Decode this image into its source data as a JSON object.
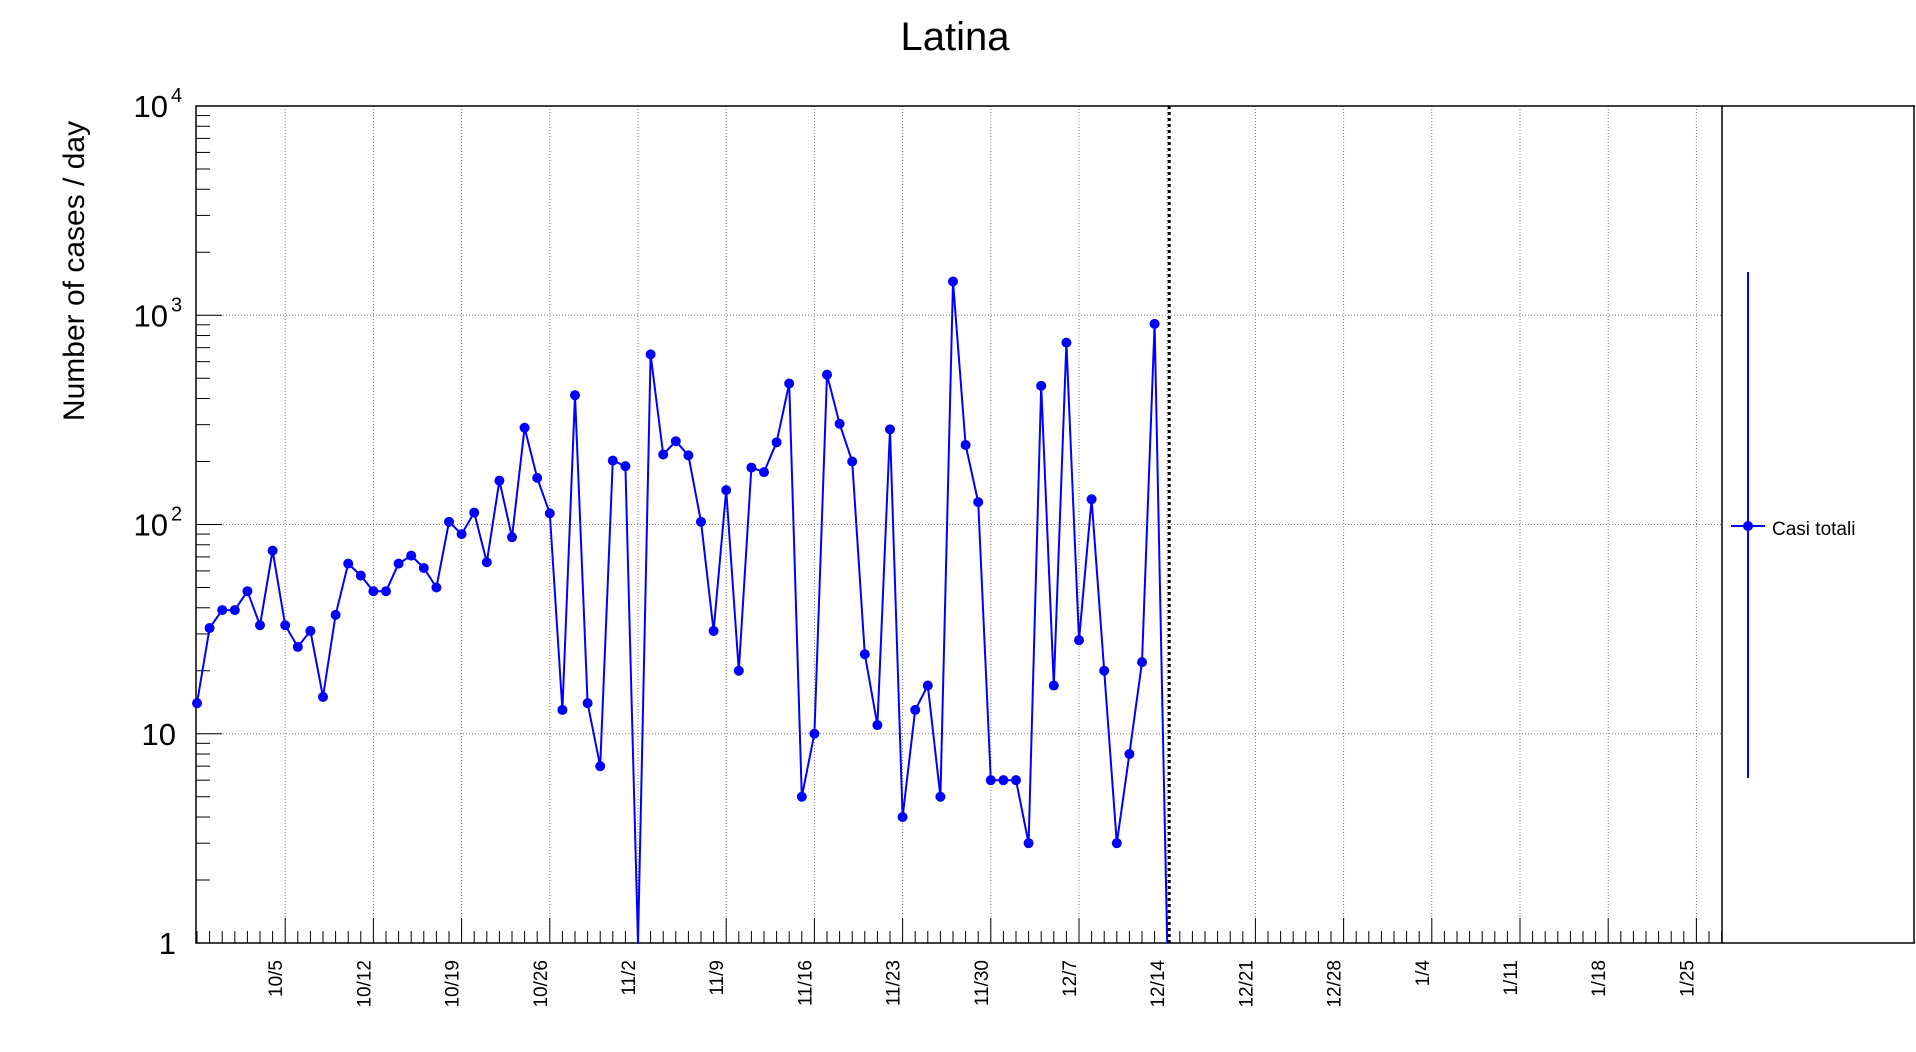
{
  "chart_data": {
    "type": "line",
    "title": "Latina",
    "xlabel": "",
    "ylabel": "Number of cases / day",
    "yscale": "log",
    "ylim": [
      1,
      10000
    ],
    "y_ticks": [
      {
        "value": 1,
        "label": "1"
      },
      {
        "value": 10,
        "label": "10"
      },
      {
        "value": 100,
        "label": "10",
        "exp": "2"
      },
      {
        "value": 1000,
        "label": "10",
        "exp": "3"
      },
      {
        "value": 10000,
        "label": "10",
        "exp": "4"
      }
    ],
    "x_ticks": [
      "10/5",
      "10/12",
      "10/19",
      "10/26",
      "11/2",
      "11/9",
      "11/16",
      "11/23",
      "11/30",
      "12/7",
      "12/14",
      "12/21",
      "12/28",
      "1/4",
      "1/11",
      "1/18",
      "1/25"
    ],
    "x_start": "9/28",
    "x_first_point": "9/28",
    "x_days_total": 123,
    "grid": true,
    "vertical_marker": "12/16",
    "legend_position": "right",
    "series": [
      {
        "name": "Casi totali",
        "color": "#0000ff",
        "x_start": "9/28",
        "values": [
          14,
          32,
          39,
          39,
          48,
          33,
          75,
          33,
          26,
          31,
          15,
          37,
          65,
          57,
          48,
          48,
          65,
          71,
          62,
          50,
          103,
          90,
          114,
          66,
          162,
          87,
          290,
          167,
          113,
          13,
          415,
          14,
          7,
          202,
          190,
          1,
          650,
          216,
          250,
          214,
          103,
          31,
          146,
          20,
          187,
          178,
          247,
          472,
          5,
          10,
          520,
          303,
          200,
          24,
          11,
          285,
          4,
          13,
          17,
          5,
          1450,
          240,
          128,
          6,
          6,
          6,
          3,
          460,
          17,
          740,
          28,
          132,
          20,
          3,
          8,
          22,
          910,
          1
        ]
      }
    ]
  }
}
